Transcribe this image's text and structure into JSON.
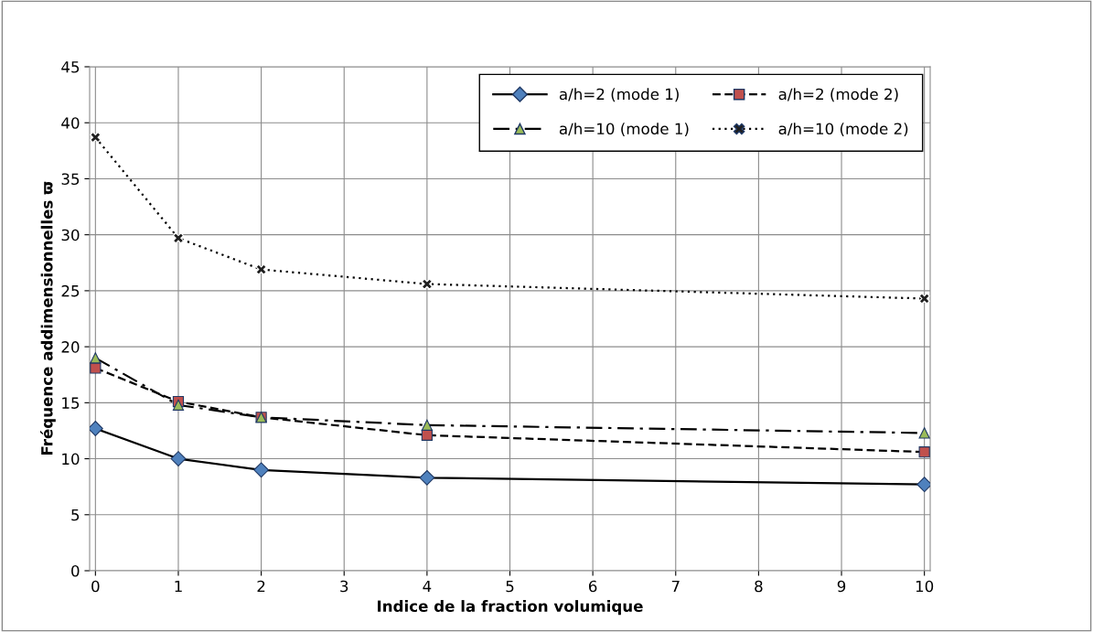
{
  "chart_data": {
    "type": "line",
    "xlabel": "Indice de la fraction volumique",
    "ylabel": "Fréquence addimensionnelles ϖ",
    "x": [
      0,
      1,
      2,
      4,
      10
    ],
    "series": [
      {
        "name": "a/h=2 (mode 1)",
        "color": "#4f81bd",
        "values": [
          12.7,
          10.0,
          9.0,
          8.3,
          7.7
        ],
        "marker": "diamond",
        "line_style": "solid"
      },
      {
        "name": "a/h=2 (mode 2)",
        "color": "#c0504d",
        "values": [
          18.1,
          15.1,
          13.7,
          12.1,
          10.6
        ],
        "marker": "square",
        "line_style": "dashed"
      },
      {
        "name": "a/h=10 (mode 1)",
        "color": "#9bbb59",
        "values": [
          19.0,
          14.8,
          13.7,
          13.0,
          12.3
        ],
        "marker": "triangle",
        "line_style": "dashdot"
      },
      {
        "name": "a/h=10 (mode 2)",
        "color": "#1f1f1f",
        "values": [
          38.7,
          29.7,
          26.9,
          25.6,
          24.3
        ],
        "marker": "cross",
        "line_style": "dotted"
      }
    ],
    "xlim": [
      -0.07,
      10.07
    ],
    "xticks": [
      0,
      1,
      2,
      3,
      4,
      5,
      6,
      7,
      8,
      9,
      10
    ],
    "ylim": [
      0,
      45
    ],
    "yticks": [
      0,
      5,
      10,
      15,
      20,
      25,
      30,
      35,
      40,
      45
    ],
    "grid": true,
    "legend": "top right"
  }
}
